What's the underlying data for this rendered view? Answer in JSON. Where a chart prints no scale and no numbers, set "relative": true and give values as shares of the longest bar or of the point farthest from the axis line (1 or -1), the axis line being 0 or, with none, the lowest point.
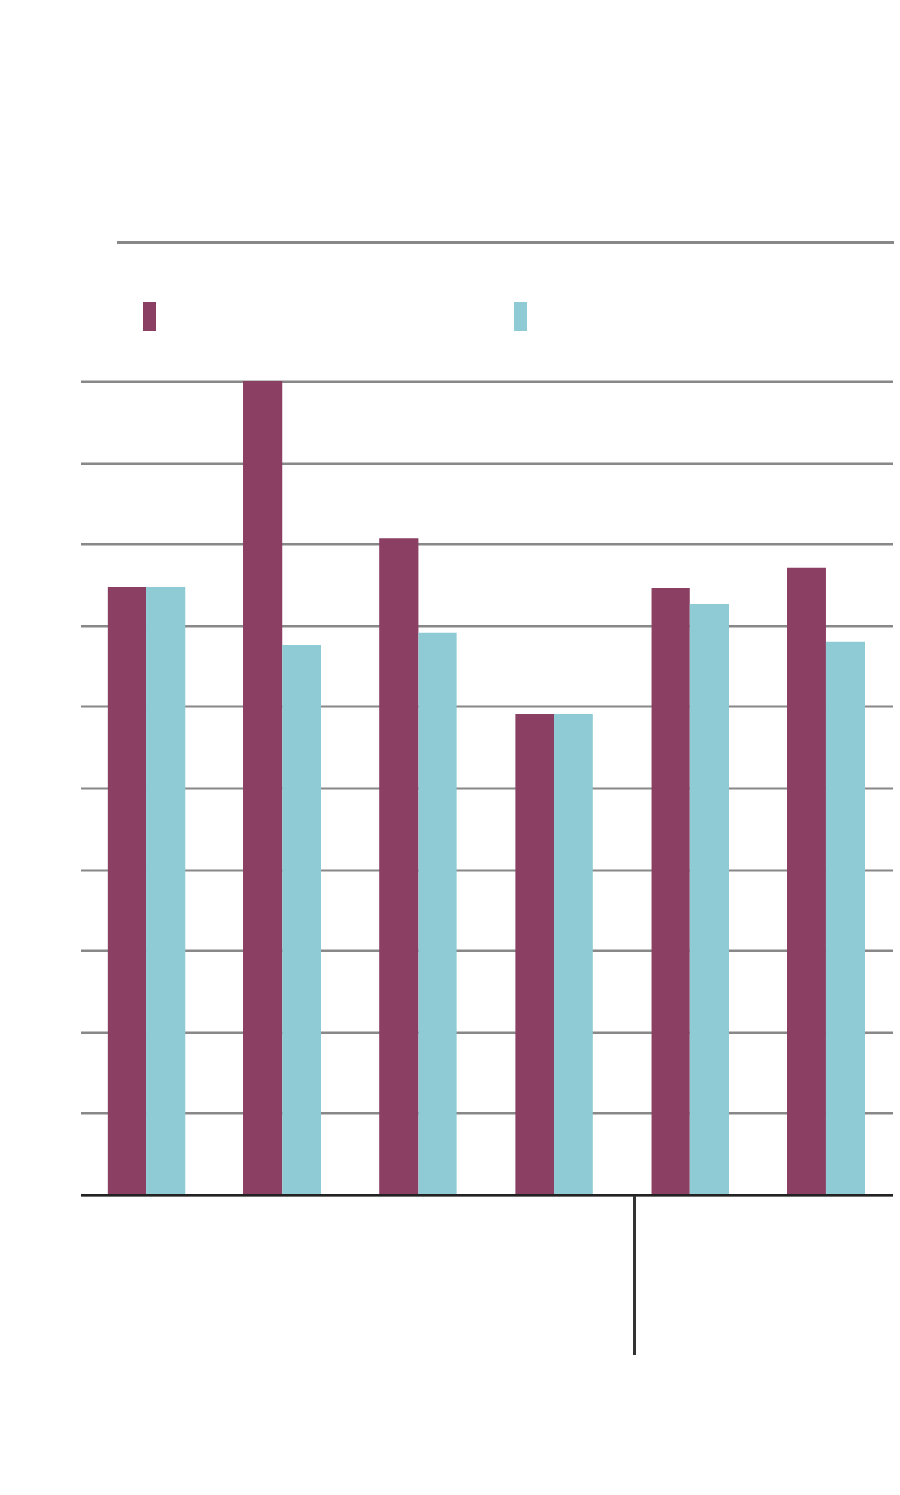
{
  "chart_data": {
    "type": "bar",
    "relative": true,
    "grid": "y",
    "categories": [
      null,
      null,
      null,
      null,
      null,
      null
    ],
    "series": [
      {
        "color": "#8b3f63",
        "values": [
          0.747,
          1.0,
          0.807,
          0.591,
          0.745,
          0.77
        ]
      },
      {
        "color": "#8ecbd5",
        "values": [
          0.747,
          0.675,
          0.691,
          0.591,
          0.726,
          0.679
        ]
      }
    ]
  }
}
